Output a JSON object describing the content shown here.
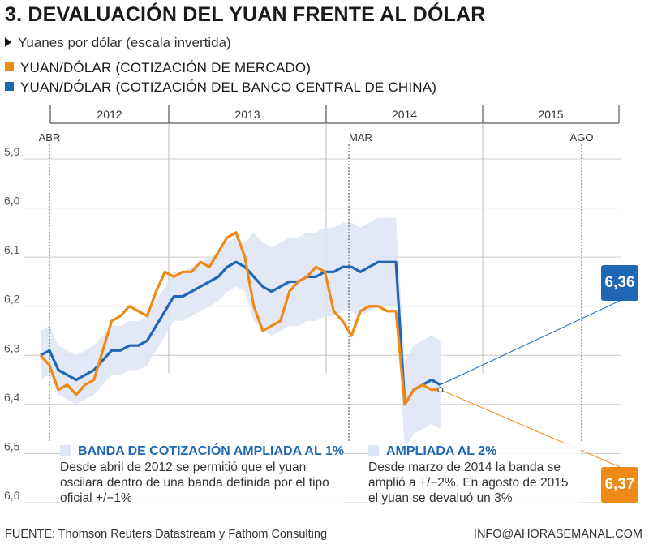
{
  "title": "3. DEVALUACIÓN DEL YUAN FRENTE AL DÓLAR",
  "subtitle": "Yuanes por dólar (escala invertida)",
  "chart_data": {
    "type": "line",
    "y_axis": {
      "inverted": true,
      "ylim": [
        5.85,
        6.6
      ],
      "ticks": [
        "5,9",
        "6,0",
        "6,1",
        "6,2",
        "6,3",
        "6,4",
        "6,5",
        "6,6"
      ]
    },
    "x_axis": {
      "years": [
        "2012",
        "2013",
        "2014",
        "2015"
      ],
      "markers": [
        "ABR",
        "MAR",
        "AGO"
      ]
    },
    "series": [
      {
        "name": "YUAN/DÓLAR (COTIZACIÓN DE MERCADO)",
        "color": "#ef8a17",
        "x": [
          "2012-03",
          "2012-04",
          "2012-05",
          "2012-06",
          "2012-07",
          "2012-08",
          "2012-09",
          "2012-10",
          "2012-11",
          "2012-12",
          "2013-01",
          "2013-02",
          "2013-03",
          "2013-04",
          "2013-05",
          "2013-06",
          "2013-07",
          "2013-08",
          "2013-09",
          "2013-10",
          "2013-11",
          "2013-12",
          "2014-01",
          "2014-02",
          "2014-03",
          "2014-04",
          "2014-05",
          "2014-06",
          "2014-07",
          "2014-08",
          "2014-09",
          "2014-10",
          "2014-11",
          "2014-12",
          "2015-01",
          "2015-02",
          "2015-03",
          "2015-04",
          "2015-05",
          "2015-06",
          "2015-07",
          "2015-08",
          "2015-09",
          "2015-10",
          "2015-11",
          "2015-12"
        ],
        "values": [
          6.3,
          6.32,
          6.37,
          6.36,
          6.38,
          6.36,
          6.35,
          6.29,
          6.23,
          6.22,
          6.2,
          6.21,
          6.22,
          6.17,
          6.13,
          6.14,
          6.13,
          6.13,
          6.11,
          6.12,
          6.09,
          6.06,
          6.05,
          6.1,
          6.2,
          6.25,
          6.24,
          6.23,
          6.17,
          6.15,
          6.14,
          6.12,
          6.13,
          6.21,
          6.23,
          6.26,
          6.21,
          6.2,
          6.2,
          6.21,
          6.21,
          6.4,
          6.37,
          6.36,
          6.37,
          6.37
        ]
      },
      {
        "name": "YUAN/DÓLAR (COTIZACIÓN DEL BANCO CENTRAL DE CHINA)",
        "color": "#1f67b4",
        "x": [
          "2012-03",
          "2012-04",
          "2012-05",
          "2012-06",
          "2012-07",
          "2012-08",
          "2012-09",
          "2012-10",
          "2012-11",
          "2012-12",
          "2013-01",
          "2013-02",
          "2013-03",
          "2013-04",
          "2013-05",
          "2013-06",
          "2013-07",
          "2013-08",
          "2013-09",
          "2013-10",
          "2013-11",
          "2013-12",
          "2014-01",
          "2014-02",
          "2014-03",
          "2014-04",
          "2014-05",
          "2014-06",
          "2014-07",
          "2014-08",
          "2014-09",
          "2014-10",
          "2014-11",
          "2014-12",
          "2015-01",
          "2015-02",
          "2015-03",
          "2015-04",
          "2015-05",
          "2015-06",
          "2015-07",
          "2015-08",
          "2015-09",
          "2015-10",
          "2015-11",
          "2015-12"
        ],
        "values": [
          6.3,
          6.29,
          6.33,
          6.34,
          6.35,
          6.34,
          6.33,
          6.31,
          6.29,
          6.29,
          6.28,
          6.28,
          6.27,
          6.24,
          6.21,
          6.18,
          6.18,
          6.17,
          6.16,
          6.15,
          6.14,
          6.12,
          6.11,
          6.12,
          6.14,
          6.16,
          6.17,
          6.16,
          6.15,
          6.15,
          6.14,
          6.14,
          6.13,
          6.13,
          6.12,
          6.12,
          6.13,
          6.12,
          6.11,
          6.11,
          6.11,
          6.4,
          6.37,
          6.36,
          6.35,
          6.36
        ]
      }
    ],
    "band": {
      "color": "#dfe6f4"
    },
    "callouts": [
      {
        "series": 1,
        "label": "6,36"
      },
      {
        "series": 0,
        "label": "6,37"
      }
    ]
  },
  "notes": [
    {
      "title": "BANDA DE COTIZACIÓN AMPLIADA AL 1%",
      "text": "Desde abril de 2012 se permitió que el yuan oscilara dentro de una banda definida por el tipo oficial +/−1%"
    },
    {
      "title": "AMPLIADA AL 2%",
      "text": "Desde marzo de 2014 la banda se amplió a +/−2%. En agosto de 2015 el yuan se devaluó un 3%"
    }
  ],
  "footer": {
    "source": "FUENTE: Thomson Reuters Datastream y Fathom Consulting",
    "contact": "INFO@AHORASEMANAL.COM"
  },
  "colors": {
    "market": "#ef8a17",
    "central_bank": "#1f67b4",
    "overlap": "#1e4a22",
    "band": "#dfe6f4"
  }
}
